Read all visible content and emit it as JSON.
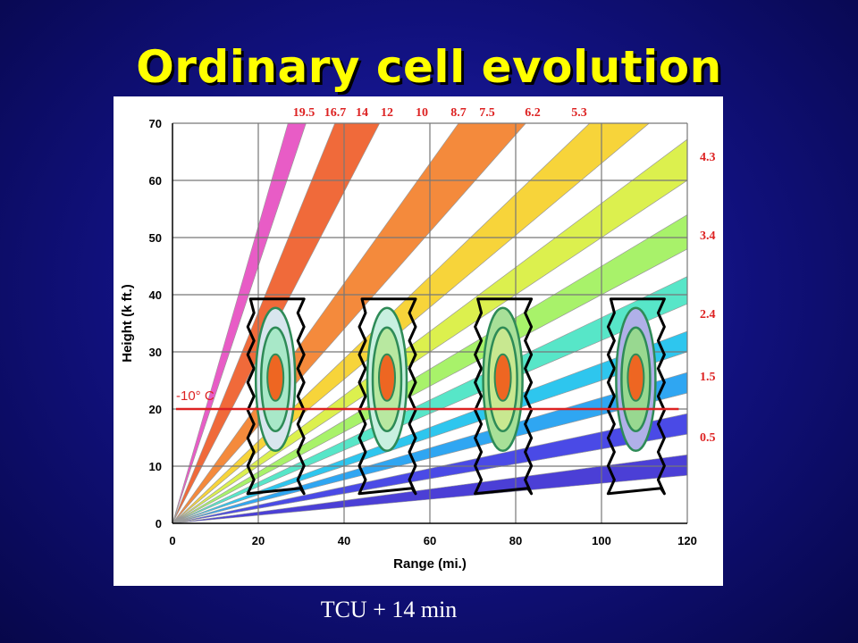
{
  "slide": {
    "title": "Ordinary cell evolution",
    "caption": "TCU + 14 min"
  },
  "chart": {
    "ylabel": "Height (k ft.)",
    "xlabel": "Range (mi.)",
    "x_ticks": [
      "0",
      "20",
      "40",
      "60",
      "80",
      "100",
      "120"
    ],
    "y_ticks": [
      "0",
      "10",
      "20",
      "30",
      "40",
      "50",
      "60",
      "70"
    ],
    "elevation_top_labels": [
      "19.5",
      "16.7",
      "14",
      "12",
      "10",
      "8.7",
      "7.5",
      "6.2",
      "5.3"
    ],
    "elevation_right_labels": [
      "4.3",
      "3.4",
      "2.4",
      "1.5",
      "0.5"
    ],
    "isotherm_label": "-10° C",
    "isotherm_height": 20,
    "cells": [
      {
        "range": 24,
        "center_height": 25.5,
        "stage": 1
      },
      {
        "range": 50,
        "center_height": 25.5,
        "stage": 2
      },
      {
        "range": 77,
        "center_height": 25.5,
        "stage": 3
      },
      {
        "range": 108,
        "center_height": 25.5,
        "stage": 4
      }
    ],
    "colors": {
      "core": "#ee6622",
      "ring_edge": "#2e8b57",
      "isotherm": "#dd2222",
      "grid": "#888888"
    }
  }
}
